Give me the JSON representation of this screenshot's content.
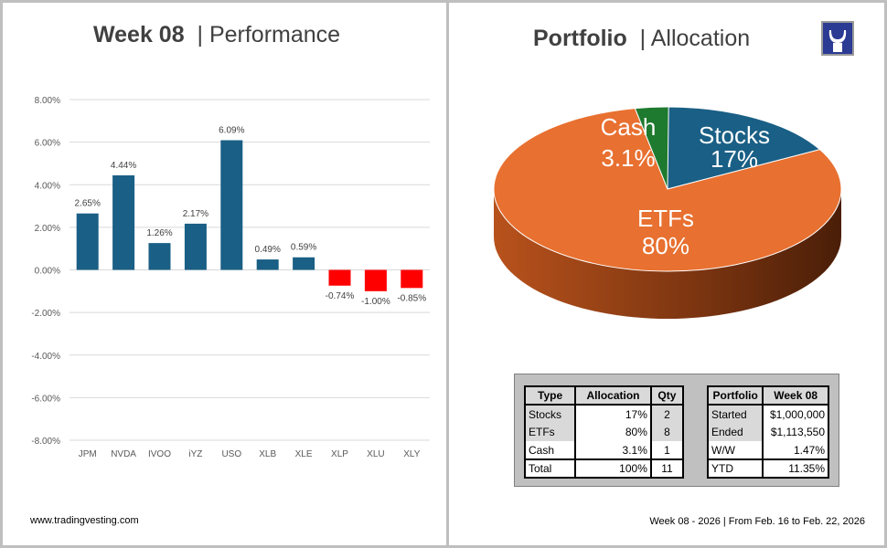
{
  "left_title": {
    "bold": "Week 08",
    "rest": "| Performance"
  },
  "right_title": {
    "bold": "Portfolio",
    "rest": "| Allocation"
  },
  "footer_left": "www.tradingvesting.com",
  "footer_right": "Week 08 - 2026 | From Feb. 16 to Feb. 22, 2026",
  "logo": {
    "icon": "bull-horns-icon",
    "color": "#2b3a93"
  },
  "chart_data": [
    {
      "type": "bar",
      "title": "Week 08 | Performance",
      "categories": [
        "JPM",
        "NVDA",
        "IVOO",
        "iYZ",
        "USO",
        "XLB",
        "XLE",
        "XLP",
        "XLU",
        "XLY"
      ],
      "values": [
        2.65,
        4.44,
        1.26,
        2.17,
        6.09,
        0.49,
        0.59,
        -0.74,
        -1.0,
        -0.85
      ],
      "labels": [
        "2.65%",
        "4.44%",
        "1.26%",
        "2.17%",
        "6.09%",
        "0.49%",
        "0.59%",
        "-0.74%",
        "-1.00%",
        "-0.85%"
      ],
      "ylim": [
        -8,
        8
      ],
      "yticks": [
        "8.00%",
        "6.00%",
        "4.00%",
        "2.00%",
        "0.00%",
        "-2.00%",
        "-4.00%",
        "-6.00%",
        "-8.00%"
      ],
      "grid": true,
      "colors": {
        "positive": "#1a5f85",
        "negative": "#ff0000"
      }
    },
    {
      "type": "pie",
      "title": "Portfolio | Allocation",
      "style": "3d",
      "slices": [
        {
          "name": "Stocks",
          "value": 17,
          "label": "17%",
          "color": "#1a5f85"
        },
        {
          "name": "ETFs",
          "value": 80,
          "label": "80%",
          "color": "#e87030"
        },
        {
          "name": "Cash",
          "value": 3.1,
          "label": "3.1%",
          "color": "#1e7a2e"
        }
      ]
    }
  ],
  "allocation_table": {
    "headers": [
      "Type",
      "Allocation",
      "Qty"
    ],
    "rows": [
      [
        "Stocks",
        "17%",
        "2"
      ],
      [
        "ETFs",
        "80%",
        "8"
      ],
      [
        "Cash",
        "3.1%",
        "1"
      ]
    ],
    "total": [
      "Total",
      "100%",
      "11"
    ]
  },
  "portfolio_table": {
    "headers": [
      "Portfolio",
      "Week 08"
    ],
    "rows": [
      [
        "Started",
        "$1,000,000"
      ],
      [
        "Ended",
        "$1,113,550"
      ],
      [
        "W/W",
        "1.47%"
      ]
    ],
    "total": [
      "YTD",
      "11.35%"
    ]
  }
}
